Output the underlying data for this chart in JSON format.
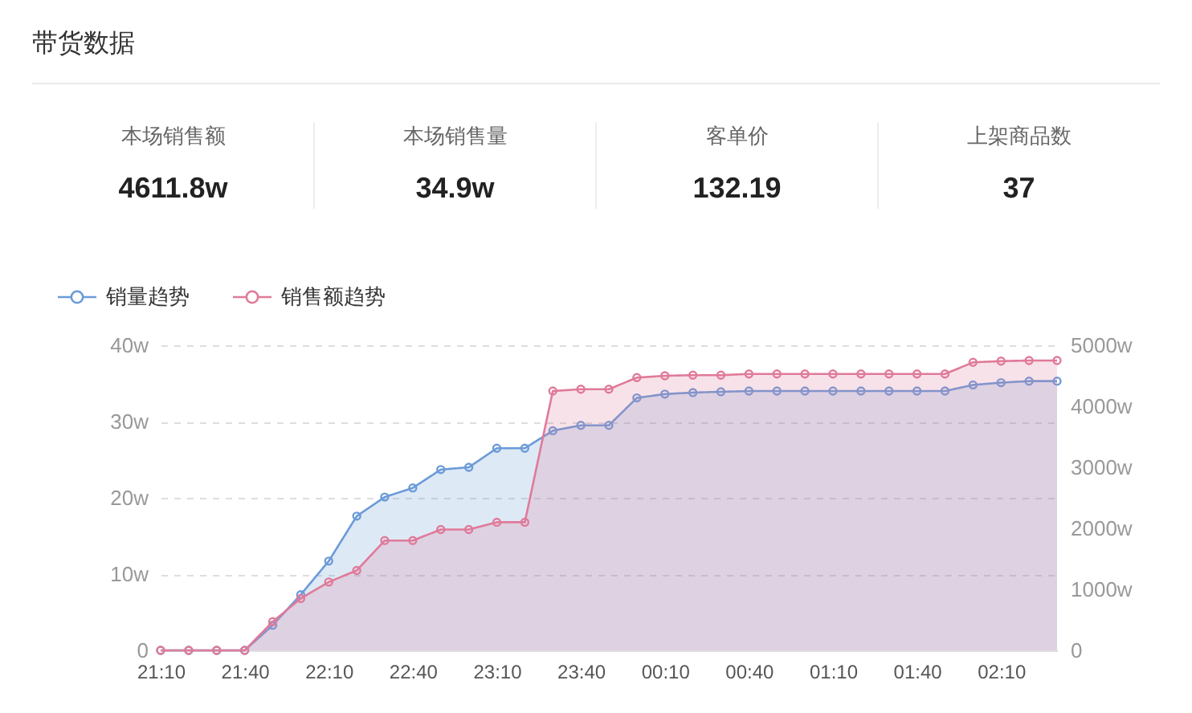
{
  "chart_data": [
    {
      "type": "other",
      "title": "带货数据",
      "annotations": [
        "本场销售额",
        "4611.8w",
        "本场销售量",
        "34.9w",
        "客单价",
        "132.19",
        "上架商品数",
        "37"
      ]
    },
    {
      "type": "area",
      "categories": [
        "21:10",
        null,
        null,
        "21:40",
        null,
        null,
        "22:10",
        null,
        null,
        "22:40",
        null,
        null,
        "23:10",
        null,
        null,
        "23:40",
        null,
        null,
        "00:10",
        null,
        null,
        "00:40",
        null,
        null,
        "01:10",
        null,
        null,
        "01:40",
        null,
        null,
        "02:10",
        null,
        null
      ],
      "series": [
        {
          "name": "销量趋势",
          "color": "#6b9bd8",
          "values": [
            0,
            0,
            0,
            0,
            3.3,
            7.3,
            11.7,
            17.6,
            20.1,
            21.3,
            23.7,
            24.0,
            26.5,
            26.5,
            28.8,
            29.5,
            29.5,
            33.1,
            33.6,
            33.8,
            33.9,
            34.0,
            34.0,
            34.0,
            34.0,
            34.0,
            34.0,
            34.0,
            34.0,
            34.8,
            35.1,
            35.3,
            35.3
          ]
        },
        {
          "name": "销售额趋势",
          "color": "#e07a99",
          "axis": "y2",
          "values": [
            0,
            0,
            0,
            0,
            470,
            850,
            1120,
            1310,
            1800,
            1800,
            1980,
            1980,
            2100,
            2100,
            4250,
            4280,
            4280,
            4470,
            4500,
            4510,
            4510,
            4530,
            4530,
            4530,
            4530,
            4530,
            4530,
            4530,
            4530,
            4720,
            4740,
            4750,
            4750
          ]
        }
      ],
      "ylim": [
        0,
        40
      ],
      "yticks": [
        0,
        {
          "value": 10,
          "label": "10w"
        },
        {
          "value": 20,
          "label": "20w"
        },
        {
          "value": 30,
          "label": "30w"
        },
        {
          "value": 40,
          "label": "40w"
        }
      ],
      "y2lim": [
        0,
        5000
      ],
      "y2ticks": [
        0,
        {
          "value": 1000,
          "label": "1000w"
        },
        {
          "value": 2000,
          "label": "2000w"
        },
        {
          "value": 3000,
          "label": "3000w"
        },
        {
          "value": 4000,
          "label": "4000w"
        },
        {
          "value": 5000,
          "label": "5000w"
        }
      ],
      "grid": "y",
      "legend": "top left",
      "marker": "circle"
    }
  ]
}
